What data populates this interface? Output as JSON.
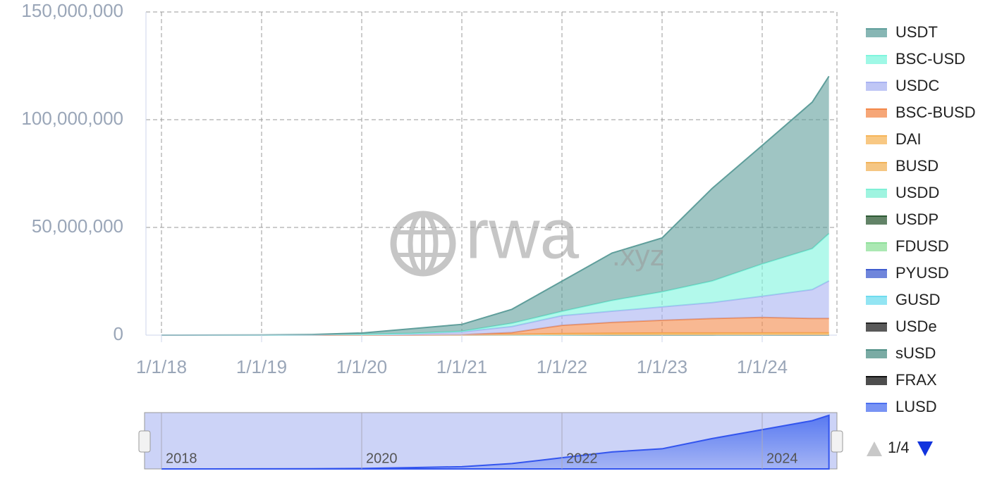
{
  "chart_data": {
    "type": "stacked_area",
    "x": [
      "1/1/18",
      "7/1/18",
      "1/1/19",
      "7/1/19",
      "1/1/20",
      "7/1/20",
      "1/1/21",
      "7/1/21",
      "1/1/22",
      "7/1/22",
      "1/1/23",
      "7/1/23",
      "1/1/24",
      "7/1/24",
      "9/1/24"
    ],
    "ylim": [
      0,
      150000000
    ],
    "yticks": [
      0,
      {
        "value": 50000000,
        "label": "50,000,000"
      },
      {
        "value": 100000000,
        "label": "100,000,000"
      },
      {
        "value": 150000000,
        "label": "150,000,000"
      }
    ],
    "xticks": [
      "1/1/18",
      "1/1/19",
      "1/1/20",
      "1/1/21",
      "1/1/22",
      "1/1/23",
      "1/1/24"
    ],
    "grid": true,
    "legend": "right",
    "series": [
      {
        "name": "USDT",
        "color": "#5f9e9b",
        "values": [
          0,
          50000,
          100000,
          200000,
          600000,
          2200000,
          3200000,
          6500000,
          14000000,
          22000000,
          25000000,
          43000000,
          55000000,
          68000000,
          73000000
        ]
      },
      {
        "name": "BSC-USD",
        "color": "#7ff5dd",
        "values": [
          0,
          0,
          0,
          0,
          100000,
          200000,
          300000,
          1500000,
          2000000,
          5000000,
          7000000,
          10000000,
          15000000,
          19000000,
          22000000
        ]
      },
      {
        "name": "USDC",
        "color": "#a9b3f2",
        "values": [
          0,
          0,
          0,
          100000,
          300000,
          600000,
          1300000,
          2800000,
          4500000,
          5200000,
          6200000,
          7400000,
          9800000,
          13400000,
          17400000
        ]
      },
      {
        "name": "BSC-BUSD",
        "color": "#f3884a",
        "values": [
          0,
          0,
          0,
          0,
          0,
          0,
          100000,
          800000,
          3800000,
          5000000,
          5900000,
          6700000,
          7200000,
          6700000,
          6700000
        ]
      },
      {
        "name": "DAI",
        "color": "#f6b65a",
        "values": [
          0,
          0,
          0,
          0,
          0,
          0,
          100000,
          300000,
          500000,
          600000,
          700000,
          700000,
          800000,
          800000,
          800000
        ]
      },
      {
        "name": "BUSD",
        "color": "#f1b35a",
        "values": [
          0,
          0,
          0,
          0,
          0,
          0,
          0,
          100000,
          200000,
          200000,
          200000,
          200000,
          100000,
          100000,
          100000
        ]
      },
      {
        "name": "USDD",
        "color": "#7ff0d6",
        "values": [
          0,
          0,
          0,
          0,
          0,
          0,
          0,
          0,
          0,
          50000,
          50000,
          50000,
          50000,
          50000,
          50000
        ]
      },
      {
        "name": "USDP",
        "color": "#2d5a34",
        "values": [
          0,
          0,
          0,
          0,
          0,
          0,
          0,
          0,
          0,
          20000,
          20000,
          20000,
          20000,
          20000,
          20000
        ]
      },
      {
        "name": "FDUSD",
        "color": "#8fe09a",
        "values": [
          0,
          0,
          0,
          0,
          0,
          0,
          0,
          0,
          0,
          0,
          0,
          0,
          20000,
          20000,
          20000
        ]
      },
      {
        "name": "PYUSD",
        "color": "#3f5ccf",
        "values": [
          0,
          0,
          0,
          0,
          0,
          0,
          0,
          0,
          0,
          0,
          0,
          0,
          10000,
          10000,
          10000
        ]
      },
      {
        "name": "GUSD",
        "color": "#6fdcef",
        "values": [
          0,
          0,
          0,
          0,
          0,
          0,
          0,
          0,
          0,
          10000,
          10000,
          10000,
          10000,
          10000,
          10000
        ]
      },
      {
        "name": "USDe",
        "color": "#222222",
        "values": [
          0,
          0,
          0,
          0,
          0,
          0,
          0,
          0,
          0,
          0,
          0,
          0,
          0,
          10000,
          10000
        ]
      },
      {
        "name": "sUSD",
        "color": "#4e8f85",
        "values": [
          0,
          0,
          0,
          0,
          0,
          0,
          0,
          0,
          10000,
          10000,
          10000,
          10000,
          10000,
          10000,
          10000
        ]
      },
      {
        "name": "FRAX",
        "color": "#111111",
        "values": [
          0,
          0,
          0,
          0,
          0,
          0,
          0,
          0,
          10000,
          10000,
          10000,
          10000,
          10000,
          10000,
          10000
        ]
      },
      {
        "name": "LUSD",
        "color": "#4b6ff0",
        "values": [
          0,
          0,
          0,
          0,
          0,
          0,
          0,
          0,
          10000,
          10000,
          10000,
          10000,
          10000,
          10000,
          10000
        ]
      }
    ]
  },
  "watermark": {
    "main": "rwa",
    "suffix": ".xyz"
  },
  "navigator": {
    "labels": [
      "2018",
      "2020",
      "2022",
      "2024"
    ]
  },
  "legend_pager": {
    "page": "1/4"
  }
}
